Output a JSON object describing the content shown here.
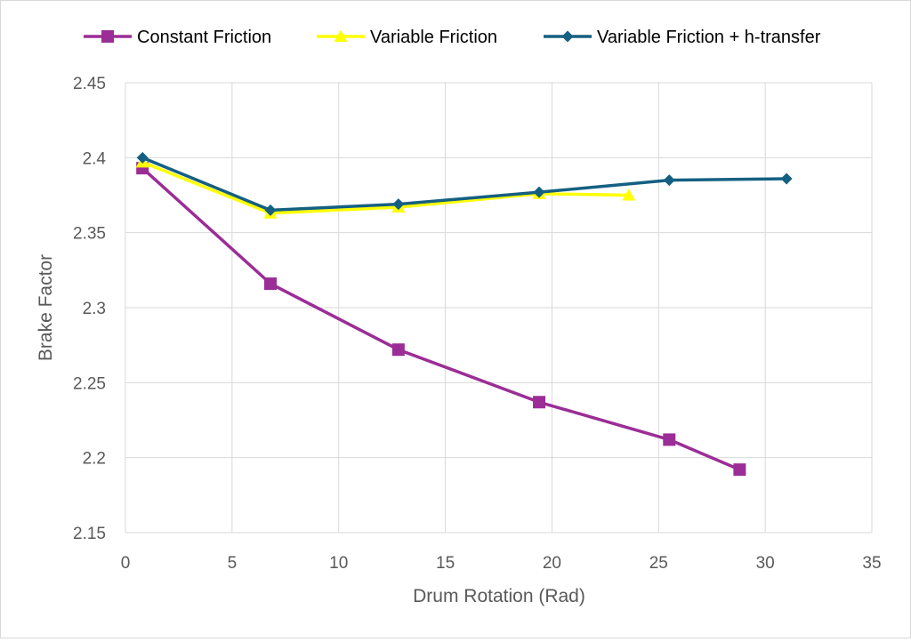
{
  "chart_data": {
    "type": "line",
    "title": "",
    "xlabel": "Drum Rotation (Rad)",
    "ylabel": "Brake Factor",
    "xlim": [
      0,
      35
    ],
    "ylim": [
      2.15,
      2.45
    ],
    "x_ticks": [
      0,
      5,
      10,
      15,
      20,
      25,
      30,
      35
    ],
    "y_ticks": [
      2.15,
      2.2,
      2.25,
      2.3,
      2.35,
      2.4,
      2.45
    ],
    "x_tick_labels": [
      "0",
      "5",
      "10",
      "15",
      "20",
      "25",
      "30",
      "35"
    ],
    "y_tick_labels": [
      "2.15",
      "2.2",
      "2.25",
      "2.3",
      "2.35",
      "2.4",
      "2.45"
    ],
    "grid": true,
    "legend_position": "top",
    "series": [
      {
        "name": "Constant Friction",
        "color": "#9b2d96",
        "marker": "square",
        "x": [
          0.8,
          6.8,
          12.8,
          19.4,
          25.5,
          28.8
        ],
        "y": [
          2.393,
          2.316,
          2.272,
          2.237,
          2.212,
          2.192
        ]
      },
      {
        "name": "Variable Friction",
        "color": "#ffff00",
        "marker": "triangle",
        "x": [
          0.8,
          6.8,
          12.8,
          19.4,
          23.6
        ],
        "y": [
          2.397,
          2.363,
          2.367,
          2.376,
          2.375
        ]
      },
      {
        "name": "Variable Friction + h-transfer",
        "color": "#156082",
        "marker": "diamond",
        "x": [
          0.8,
          6.8,
          12.8,
          19.4,
          25.5,
          31.0
        ],
        "y": [
          2.4,
          2.365,
          2.369,
          2.377,
          2.385,
          2.386
        ]
      }
    ]
  }
}
